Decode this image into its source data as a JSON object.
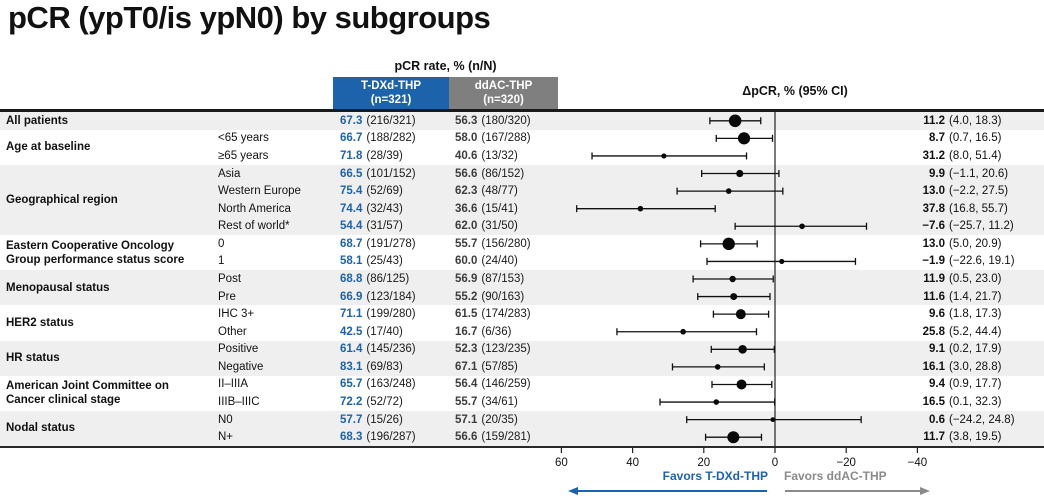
{
  "title": "pCR (ypT0/is ypN0) by subgroups",
  "header": {
    "group_header": "pCR rate, % (n/N)",
    "delta_header": "ΔpCR, % (95% CI)",
    "col1": {
      "name": "T-DXd-THP",
      "n": "(n=321)",
      "color": "#1c63ac"
    },
    "col2": {
      "name": "ddAC-THP",
      "n": "(n=320)",
      "color": "#7f7f7f"
    }
  },
  "footer": {
    "favors_left": "Favors T-DXd-THP",
    "favors_right": "Favors ddAC-THP"
  },
  "colors": {
    "accent_blue": "#1c63ac",
    "accent_gray": "#7f7f7f",
    "row_shade": "#efefef",
    "marker": "#0a0a0a"
  },
  "chart_data": {
    "type": "forest",
    "title": "pCR (ypT0/is ypN0) by subgroups",
    "xlabel": "ΔpCR, % (95% CI)",
    "axis": {
      "ticks": [
        60,
        40,
        20,
        0,
        -20,
        -40
      ],
      "tick_labels": [
        "60",
        "40",
        "20",
        "0",
        "−20",
        "−40"
      ],
      "reversed": true,
      "xlim": [
        66,
        -46
      ]
    },
    "groups": [
      {
        "category_lines": [
          "All patients"
        ],
        "shaded": true,
        "rows": [
          {
            "subgroup": "",
            "tdxd_pct": "67.3",
            "tdxd_n": "(216/321)",
            "ddac_pct": "56.3",
            "ddac_n": "(180/320)",
            "delta": 11.2,
            "ci": [
              4.0,
              18.3
            ],
            "delta_label": "11.2",
            "ci_label": "(4.0, 18.3)",
            "marker_r": 6.3
          }
        ]
      },
      {
        "category_lines": [
          "Age at baseline"
        ],
        "shaded": false,
        "rows": [
          {
            "subgroup": "<65 years",
            "tdxd_pct": "66.7",
            "tdxd_n": "(188/282)",
            "ddac_pct": "58.0",
            "ddac_n": "(167/288)",
            "delta": 8.7,
            "ci": [
              0.7,
              16.5
            ],
            "delta_label": "8.7",
            "ci_label": "(0.7, 16.5)",
            "marker_r": 6.1
          },
          {
            "subgroup": "≥65 years",
            "tdxd_pct": "71.8",
            "tdxd_n": "(28/39)",
            "ddac_pct": "40.6",
            "ddac_n": "(13/32)",
            "delta": 31.2,
            "ci": [
              8.0,
              51.4
            ],
            "delta_label": "31.2",
            "ci_label": "(8.0, 51.4)",
            "marker_r": 2.6
          }
        ]
      },
      {
        "category_lines": [
          "Geographical region"
        ],
        "shaded": true,
        "rows": [
          {
            "subgroup": "Asia",
            "tdxd_pct": "66.5",
            "tdxd_n": "(101/152)",
            "ddac_pct": "56.6",
            "ddac_n": "(86/152)",
            "delta": 9.9,
            "ci": [
              -1.1,
              20.6
            ],
            "delta_label": "9.9",
            "ci_label": "(−1.1, 20.6)",
            "marker_r": 3.6
          },
          {
            "subgroup": "Western Europe",
            "tdxd_pct": "75.4",
            "tdxd_n": "(52/69)",
            "ddac_pct": "62.3",
            "ddac_n": "(48/77)",
            "delta": 13.0,
            "ci": [
              -2.2,
              27.5
            ],
            "delta_label": "13.0",
            "ci_label": "(−2.2, 27.5)",
            "marker_r": 2.8
          },
          {
            "subgroup": "North America",
            "tdxd_pct": "74.4",
            "tdxd_n": "(32/43)",
            "ddac_pct": "36.6",
            "ddac_n": "(15/41)",
            "delta": 37.8,
            "ci": [
              16.8,
              55.7
            ],
            "delta_label": "37.8",
            "ci_label": "(16.8, 55.7)",
            "marker_r": 2.8
          },
          {
            "subgroup": "Rest of world*",
            "tdxd_pct": "54.4",
            "tdxd_n": "(31/57)",
            "ddac_pct": "62.0",
            "ddac_n": "(31/50)",
            "delta": -7.6,
            "ci": [
              -25.7,
              11.2
            ],
            "delta_label": "−7.6",
            "ci_label": "(−25.7, 11.2)",
            "marker_r": 2.8
          }
        ]
      },
      {
        "category_lines": [
          "Eastern Cooperative Oncology",
          "Group performance status score"
        ],
        "shaded": false,
        "rows": [
          {
            "subgroup": "0",
            "tdxd_pct": "68.7",
            "tdxd_n": "(191/278)",
            "ddac_pct": "55.7",
            "ddac_n": "(156/280)",
            "delta": 13.0,
            "ci": [
              5.0,
              20.9
            ],
            "delta_label": "13.0",
            "ci_label": "(5.0, 20.9)",
            "marker_r": 6.2
          },
          {
            "subgroup": "1",
            "tdxd_pct": "58.1",
            "tdxd_n": "(25/43)",
            "ddac_pct": "60.0",
            "ddac_n": "(24/40)",
            "delta": -1.9,
            "ci": [
              -22.6,
              19.1
            ],
            "delta_label": "−1.9",
            "ci_label": "(−22.6, 19.1)",
            "marker_r": 2.6
          }
        ]
      },
      {
        "category_lines": [
          "Menopausal status"
        ],
        "shaded": true,
        "rows": [
          {
            "subgroup": "Post",
            "tdxd_pct": "68.8",
            "tdxd_n": "(86/125)",
            "ddac_pct": "56.9",
            "ddac_n": "(87/153)",
            "delta": 11.9,
            "ci": [
              0.5,
              23.0
            ],
            "delta_label": "11.9",
            "ci_label": "(0.5, 23.0)",
            "marker_r": 3.2
          },
          {
            "subgroup": "Pre",
            "tdxd_pct": "66.9",
            "tdxd_n": "(123/184)",
            "ddac_pct": "55.2",
            "ddac_n": "(90/163)",
            "delta": 11.6,
            "ci": [
              1.4,
              21.7
            ],
            "delta_label": "11.6",
            "ci_label": "(1.4, 21.7)",
            "marker_r": 3.5
          }
        ]
      },
      {
        "category_lines": [
          "HER2 status"
        ],
        "shaded": false,
        "rows": [
          {
            "subgroup": "IHC 3+",
            "tdxd_pct": "71.1",
            "tdxd_n": "(199/280)",
            "ddac_pct": "61.5",
            "ddac_n": "(174/283)",
            "delta": 9.6,
            "ci": [
              1.8,
              17.3
            ],
            "delta_label": "9.6",
            "ci_label": "(1.8, 17.3)",
            "marker_r": 5.0
          },
          {
            "subgroup": "Other",
            "tdxd_pct": "42.5",
            "tdxd_n": "(17/40)",
            "ddac_pct": "16.7",
            "ddac_n": "(6/36)",
            "delta": 25.8,
            "ci": [
              5.2,
              44.4
            ],
            "delta_label": "25.8",
            "ci_label": "(5.2, 44.4)",
            "marker_r": 2.8
          }
        ]
      },
      {
        "category_lines": [
          "HR status"
        ],
        "shaded": true,
        "rows": [
          {
            "subgroup": "Positive",
            "tdxd_pct": "61.4",
            "tdxd_n": "(145/236)",
            "ddac_pct": "52.3",
            "ddac_n": "(123/235)",
            "delta": 9.1,
            "ci": [
              0.2,
              17.9
            ],
            "delta_label": "9.1",
            "ci_label": "(0.2, 17.9)",
            "marker_r": 4.3
          },
          {
            "subgroup": "Negative",
            "tdxd_pct": "83.1",
            "tdxd_n": "(69/83)",
            "ddac_pct": "67.1",
            "ddac_n": "(57/85)",
            "delta": 16.1,
            "ci": [
              3.0,
              28.8
            ],
            "delta_label": "16.1",
            "ci_label": "(3.0, 28.8)",
            "marker_r": 2.8
          }
        ]
      },
      {
        "category_lines": [
          "American Joint Committee on",
          "Cancer clinical stage"
        ],
        "shaded": false,
        "rows": [
          {
            "subgroup": "II–IIIA",
            "tdxd_pct": "65.7",
            "tdxd_n": "(163/248)",
            "ddac_pct": "56.4",
            "ddac_n": "(146/259)",
            "delta": 9.4,
            "ci": [
              0.9,
              17.7
            ],
            "delta_label": "9.4",
            "ci_label": "(0.9, 17.7)",
            "marker_r": 5.0
          },
          {
            "subgroup": "IIIB–IIIC",
            "tdxd_pct": "72.2",
            "tdxd_n": "(52/72)",
            "ddac_pct": "55.7",
            "ddac_n": "(34/61)",
            "delta": 16.5,
            "ci": [
              0.1,
              32.3
            ],
            "delta_label": "16.5",
            "ci_label": "(0.1, 32.3)",
            "marker_r": 2.8
          }
        ]
      },
      {
        "category_lines": [
          "Nodal status"
        ],
        "shaded": true,
        "rows": [
          {
            "subgroup": "N0",
            "tdxd_pct": "57.7",
            "tdxd_n": "(15/26)",
            "ddac_pct": "57.1",
            "ddac_n": "(20/35)",
            "delta": 0.6,
            "ci": [
              -24.2,
              24.8
            ],
            "delta_label": "0.6",
            "ci_label": "(−24.2, 24.8)",
            "marker_r": 2.4
          },
          {
            "subgroup": "N+",
            "tdxd_pct": "68.3",
            "tdxd_n": "(196/287)",
            "ddac_pct": "56.6",
            "ddac_n": "(159/281)",
            "delta": 11.7,
            "ci": [
              3.8,
              19.5
            ],
            "delta_label": "11.7",
            "ci_label": "(3.8, 19.5)",
            "marker_r": 6.0
          }
        ]
      }
    ]
  }
}
